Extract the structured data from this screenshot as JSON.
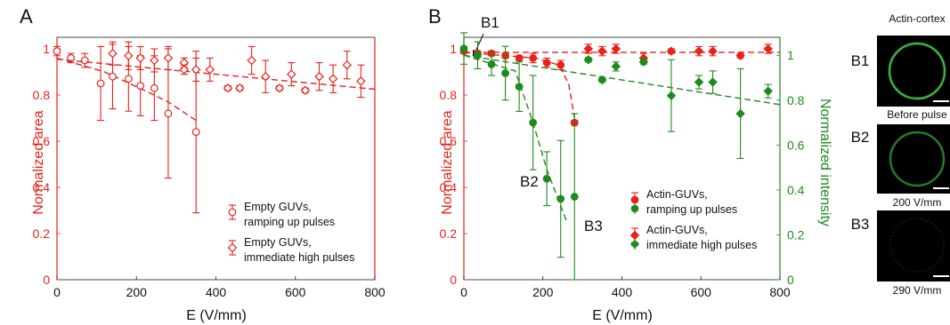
{
  "colors": {
    "red": "#e8221b",
    "green": "#1d8a1d",
    "axis": "#1a1a1a"
  },
  "chart_data": [
    {
      "panel_label": "A",
      "type": "scatter",
      "xlabel": "E (V/mm)",
      "ylabel": "Normalized area",
      "xlim": [
        0,
        800
      ],
      "ylim": [
        0,
        1.05
      ],
      "x_ticks": [
        "0",
        "200",
        "400",
        "600",
        "800"
      ],
      "y_ticks": [
        "0",
        "0.2",
        "0.4",
        "0.6",
        "0.8",
        "1"
      ],
      "legend_position": "lower-right",
      "series": [
        {
          "name": "Empty GUVs, ramping up pulses",
          "legend_lines": [
            "Empty GUVs,",
            "ramping up pulses"
          ],
          "marker": "circle",
          "points": [
            {
              "x": 0,
              "y": 0.99,
              "e": 0.02
            },
            {
              "x": 35,
              "y": 0.96,
              "e": 0.02
            },
            {
              "x": 70,
              "y": 0.95,
              "e": 0.03
            },
            {
              "x": 110,
              "y": 0.85,
              "e": 0.16
            },
            {
              "x": 140,
              "y": 0.88,
              "e": 0.14
            },
            {
              "x": 180,
              "y": 0.87,
              "e": 0.14
            },
            {
              "x": 210,
              "y": 0.84,
              "e": 0.13
            },
            {
              "x": 245,
              "y": 0.83,
              "e": 0.14
            },
            {
              "x": 280,
              "y": 0.72,
              "e": 0.28
            },
            {
              "x": 350,
              "y": 0.64,
              "e": 0.35
            }
          ],
          "trend": [
            [
              0,
              0.96
            ],
            [
              120,
              0.9
            ],
            [
              220,
              0.82
            ],
            [
              280,
              0.77
            ],
            [
              350,
              0.69
            ]
          ]
        },
        {
          "name": "Empty GUVs, immediate high pulses",
          "legend_lines": [
            "Empty GUVs,",
            "immediate high pulses"
          ],
          "marker": "diamond",
          "points": [
            {
              "x": 140,
              "y": 0.98,
              "e": 0.05
            },
            {
              "x": 180,
              "y": 0.97,
              "e": 0.06
            },
            {
              "x": 210,
              "y": 0.96,
              "e": 0.05
            },
            {
              "x": 245,
              "y": 0.95,
              "e": 0.05
            },
            {
              "x": 280,
              "y": 0.96,
              "e": 0.05
            },
            {
              "x": 320,
              "y": 0.94,
              "e": 0.02
            },
            {
              "x": 320,
              "y": 0.91,
              "e": 0.02
            },
            {
              "x": 350,
              "y": 0.91,
              "e": 0.05
            },
            {
              "x": 385,
              "y": 0.91,
              "e": 0.05
            },
            {
              "x": 430,
              "y": 0.83,
              "e": 0.01
            },
            {
              "x": 460,
              "y": 0.83,
              "e": 0.01
            },
            {
              "x": 490,
              "y": 0.95,
              "e": 0.06
            },
            {
              "x": 525,
              "y": 0.88,
              "e": 0.07
            },
            {
              "x": 560,
              "y": 0.83,
              "e": 0.01
            },
            {
              "x": 590,
              "y": 0.89,
              "e": 0.05
            },
            {
              "x": 625,
              "y": 0.82,
              "e": 0.01
            },
            {
              "x": 660,
              "y": 0.88,
              "e": 0.06
            },
            {
              "x": 695,
              "y": 0.87,
              "e": 0.06
            },
            {
              "x": 730,
              "y": 0.93,
              "e": 0.06
            },
            {
              "x": 765,
              "y": 0.86,
              "e": 0.07
            }
          ],
          "trend": [
            [
              0,
              0.955
            ],
            [
              400,
              0.89
            ],
            [
              800,
              0.825
            ]
          ]
        }
      ]
    },
    {
      "panel_label": "B",
      "type": "scatter",
      "xlabel": "E (V/mm)",
      "ylabel": "Normalized area",
      "y2label": "Normalized intensity",
      "xlim": [
        0,
        800
      ],
      "ylim": [
        0,
        1.05
      ],
      "y2lim": [
        0,
        1.08
      ],
      "x_ticks": [
        "0",
        "200",
        "400",
        "600",
        "800"
      ],
      "y_ticks": [
        "0",
        "0.2",
        "0.4",
        "0.6",
        "0.8",
        "1"
      ],
      "y2_ticks": [
        "0",
        "0.2",
        "0.4",
        "0.6",
        "0.8",
        "1"
      ],
      "legend_position": "lower-right",
      "annotations": [
        "B1",
        "B2",
        "B3"
      ],
      "series": [
        {
          "name": "Actin-GUVs, ramping up pulses (area)",
          "legend_lines": [
            "Actin-GUVs,",
            "ramping up pulses"
          ],
          "marker": "circle",
          "axis": "left",
          "points": [
            {
              "x": 0,
              "y": 0.99,
              "e": 0.01
            },
            {
              "x": 35,
              "y": 0.98,
              "e": 0.01
            },
            {
              "x": 70,
              "y": 0.98,
              "e": 0.01
            },
            {
              "x": 105,
              "y": 0.97,
              "e": 0.01
            },
            {
              "x": 140,
              "y": 0.96,
              "e": 0.01
            },
            {
              "x": 175,
              "y": 0.96,
              "e": 0.02
            },
            {
              "x": 210,
              "y": 0.94,
              "e": 0.02
            },
            {
              "x": 245,
              "y": 0.93,
              "e": 0.02
            },
            {
              "x": 280,
              "y": 0.68,
              "e": 0.01
            }
          ],
          "trend": [
            [
              0,
              0.985
            ],
            [
              180,
              0.96
            ],
            [
              240,
              0.93
            ],
            [
              265,
              0.85
            ],
            [
              280,
              0.7
            ]
          ]
        },
        {
          "name": "Actin-GUVs, immediate high pulses (area)",
          "legend_lines": [
            "Actin-GUVs,",
            "immediate high pulses"
          ],
          "marker": "diamond",
          "axis": "left",
          "points": [
            {
              "x": 315,
              "y": 1.0,
              "e": 0.02
            },
            {
              "x": 350,
              "y": 0.99,
              "e": 0.02
            },
            {
              "x": 385,
              "y": 1.0,
              "e": 0.02
            },
            {
              "x": 455,
              "y": 0.96,
              "e": 0.02
            },
            {
              "x": 525,
              "y": 0.99,
              "e": 0.01
            },
            {
              "x": 595,
              "y": 0.99,
              "e": 0.02
            },
            {
              "x": 630,
              "y": 0.99,
              "e": 0.02
            },
            {
              "x": 700,
              "y": 0.97,
              "e": 0.01
            },
            {
              "x": 770,
              "y": 1.0,
              "e": 0.02
            }
          ],
          "trend": [
            [
              0,
              0.985
            ],
            [
              800,
              0.985
            ]
          ]
        },
        {
          "name": "Actin-GUVs, ramping up pulses (intensity)",
          "marker": "circle",
          "axis": "right",
          "points": [
            {
              "x": 0,
              "y": 1.03,
              "e": 0.07
            },
            {
              "x": 35,
              "y": 1.0,
              "e": 0.06
            },
            {
              "x": 70,
              "y": 0.96,
              "e": 0.05
            },
            {
              "x": 105,
              "y": 0.92,
              "e": 0.12
            },
            {
              "x": 140,
              "y": 0.86,
              "e": 0.11
            },
            {
              "x": 175,
              "y": 0.7,
              "e": 0.21
            },
            {
              "x": 210,
              "y": 0.45,
              "e": 0.12
            },
            {
              "x": 245,
              "y": 0.36,
              "e": 0.26
            },
            {
              "x": 280,
              "y": 0.37,
              "e": 0.37
            }
          ],
          "trend": [
            [
              0,
              1.0
            ],
            [
              130,
              0.93
            ],
            [
              175,
              0.7
            ],
            [
              210,
              0.49
            ],
            [
              260,
              0.26
            ]
          ]
        },
        {
          "name": "Actin-GUVs, immediate high pulses (intensity)",
          "marker": "diamond",
          "axis": "right",
          "points": [
            {
              "x": 315,
              "y": 0.98,
              "e": 0.01
            },
            {
              "x": 350,
              "y": 0.89,
              "e": 0.01
            },
            {
              "x": 385,
              "y": 0.95,
              "e": 0.02
            },
            {
              "x": 455,
              "y": 0.97,
              "e": 0.01
            },
            {
              "x": 525,
              "y": 0.82,
              "e": 0.16
            },
            {
              "x": 595,
              "y": 0.88,
              "e": 0.03
            },
            {
              "x": 630,
              "y": 0.88,
              "e": 0.05
            },
            {
              "x": 700,
              "y": 0.74,
              "e": 0.2
            },
            {
              "x": 770,
              "y": 0.84,
              "e": 0.03
            }
          ],
          "trend": [
            [
              0,
              1.0
            ],
            [
              800,
              0.78
            ]
          ]
        }
      ]
    }
  ],
  "micrographs": {
    "header": "Actin-cortex",
    "items": [
      {
        "label": "B1",
        "caption": "Before pulse",
        "intensity": 1.0
      },
      {
        "label": "B2",
        "caption": "200 V/mm",
        "intensity": 0.8
      },
      {
        "label": "B3",
        "caption": "290 V/mm",
        "intensity": 0.35
      }
    ]
  }
}
